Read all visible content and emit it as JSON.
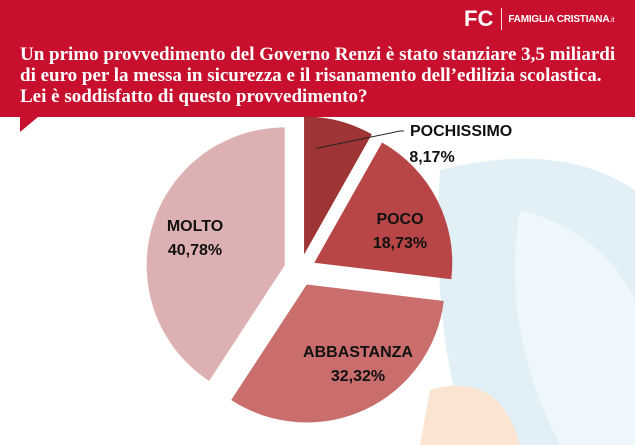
{
  "brand": {
    "mark": "FC",
    "name": "FAMIGLIA CRISTIANA",
    "suffix": ".it"
  },
  "question": "Un primo provvedimento del Governo Renzi è stato stanziare 3,5 miliardi di euro per la messa in sicurezza e il risanamento dell’edilizia scolastica. Lei è soddisfatto di questo provvedimento?",
  "colors": {
    "header": "#c8102e",
    "pochissimo": "#9e3434",
    "poco": "#b94646",
    "abbastanza": "#c96d6d",
    "molto": "#ddb1b1"
  },
  "chart_data": {
    "type": "pie",
    "title": "",
    "slices": [
      {
        "label": "POCHISSIMO",
        "value": 8.17,
        "display": "8,17%",
        "color": "#9e3434"
      },
      {
        "label": "POCO",
        "value": 18.73,
        "display": "18,73%",
        "color": "#b94646"
      },
      {
        "label": "ABBASTANZA",
        "value": 32.32,
        "display": "32,32%",
        "color": "#c96d6d"
      },
      {
        "label": "MOLTO",
        "value": 40.78,
        "display": "40,78%",
        "color": "#ddb1b1"
      }
    ],
    "exploded": true,
    "legend": "none"
  }
}
